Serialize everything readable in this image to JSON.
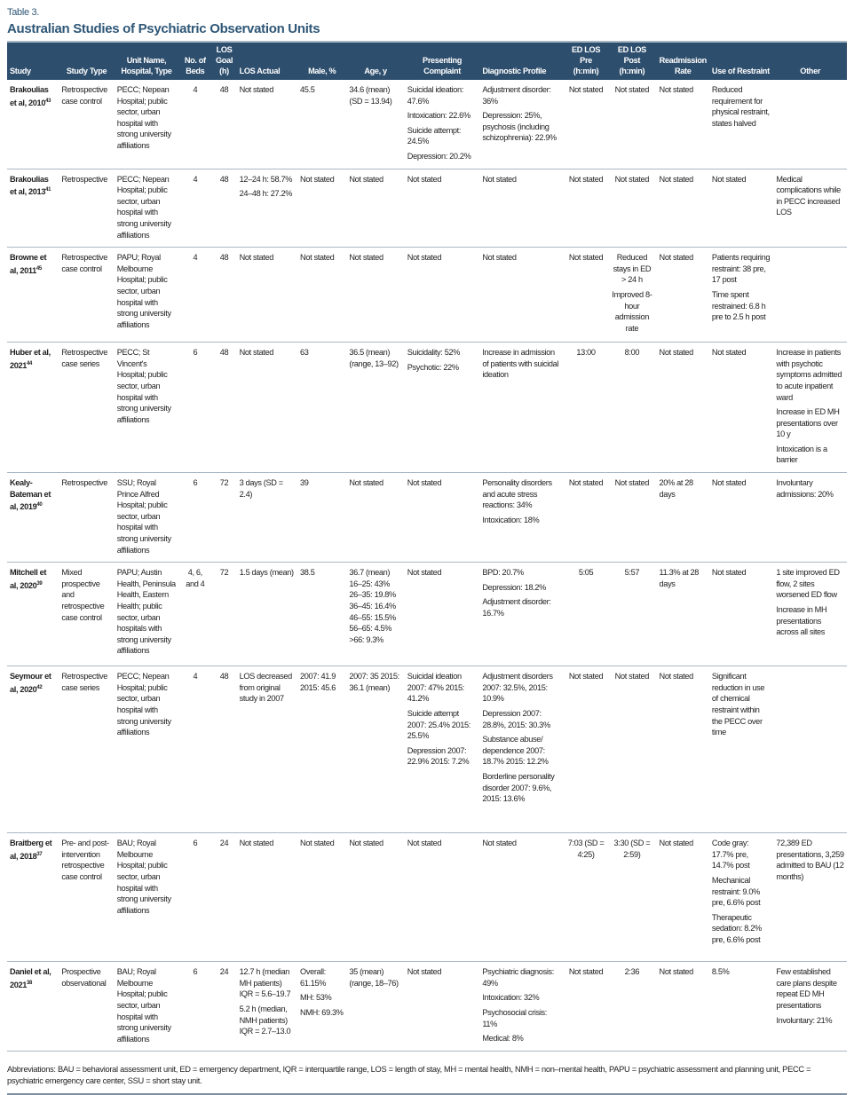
{
  "table_label": "Table 3.",
  "title": "Australian Studies of Psychiatric Observation Units",
  "colors": {
    "header_bg": "#2e4e6d",
    "title": "#2f5777",
    "rule": "#a9b7c5"
  },
  "columns": [
    "Study",
    "Study Type",
    "Unit Name, Hospital, Type",
    "No. of Beds",
    "LOS Goal (h)",
    "LOS Actual",
    "Male, %",
    "Age, y",
    "Presenting Complaint",
    "Diagnostic Profile",
    "ED LOS Pre (h:min)",
    "ED LOS Post (h:min)",
    "Readmission Rate",
    "Use of Restraint",
    "Other"
  ],
  "rows": [
    {
      "study": "Brakoulias et al, 2010",
      "ref": "43",
      "cells": [
        [
          "Retrospective case control"
        ],
        [
          "PECC; Nepean Hospital; public sector, urban hospital with strong university affiliations"
        ],
        [
          "4"
        ],
        [
          "48"
        ],
        [
          "Not stated"
        ],
        [
          "45.5"
        ],
        [
          "34.6 (mean) (SD = 13.94)"
        ],
        [
          "Suicidal ideation: 47.6%",
          "Intoxication: 22.6%",
          "Suicide attempt: 24.5%",
          "Depression: 20.2%"
        ],
        [
          "Adjustment disorder: 36%",
          "Depression: 25%, psychosis (including schizophrenia): 22.9%"
        ],
        [
          "Not stated"
        ],
        [
          "Not stated"
        ],
        [
          "Not stated"
        ],
        [
          "Reduced requirement for physical restraint, states halved"
        ],
        []
      ]
    },
    {
      "study": "Brakoulias et al, 2013",
      "ref": "41",
      "cells": [
        [
          "Retrospective"
        ],
        [
          "PECC; Nepean Hospital; public sector, urban hospital with strong university affiliations"
        ],
        [
          "4"
        ],
        [
          "48"
        ],
        [
          "12–24 h: 58.7%",
          "24–48 h: 27.2%"
        ],
        [
          "Not stated"
        ],
        [
          "Not stated"
        ],
        [
          "Not stated"
        ],
        [
          "Not stated"
        ],
        [
          "Not stated"
        ],
        [
          "Not stated"
        ],
        [
          "Not stated"
        ],
        [
          "Not stated"
        ],
        [
          "Medical complications while in PECC increased LOS"
        ]
      ]
    },
    {
      "study": "Browne et al, 2011",
      "ref": "45",
      "cells": [
        [
          "Retrospective case control"
        ],
        [
          "PAPU; Royal Melbourne Hospital; public sector, urban hospital with strong university affiliations"
        ],
        [
          "4"
        ],
        [
          "48"
        ],
        [
          "Not stated"
        ],
        [
          "Not stated"
        ],
        [
          "Not stated"
        ],
        [
          "Not stated"
        ],
        [
          "Not stated"
        ],
        [
          "Not stated"
        ],
        [
          "Reduced stays in ED > 24 h",
          "Improved 8-hour admission rate"
        ],
        [
          "Not stated"
        ],
        [
          "Patients requiring restraint: 38 pre, 17 post",
          "Time spent restrained: 6.8 h pre to 2.5 h post"
        ],
        []
      ]
    },
    {
      "study": "Huber et al, 2021",
      "ref": "44",
      "cells": [
        [
          "Retrospective case series"
        ],
        [
          "PECC; St Vincent's Hospital; public sector, urban hospital with strong university affiliations"
        ],
        [
          "6"
        ],
        [
          "48"
        ],
        [
          "Not stated"
        ],
        [
          "63"
        ],
        [
          "36.5 (mean) (range, 13–92)"
        ],
        [
          "Suicidality: 52%",
          "Psychotic: 22%"
        ],
        [
          "Increase in admission of patients with suicidal ideation"
        ],
        [
          "13:00"
        ],
        [
          "8:00"
        ],
        [
          "Not stated"
        ],
        [
          "Not stated"
        ],
        [
          "Increase in patients with psychotic symptoms admitted to acute inpatient ward",
          "Increase in ED MH presentations over 10 y",
          "Intoxication is a barrier"
        ]
      ]
    },
    {
      "study": "Kealy-Bateman et al, 2019",
      "ref": "40",
      "cells": [
        [
          "Retrospective"
        ],
        [
          "SSU; Royal Prince Alfred Hospital; public sector, urban hospital with strong university affiliations"
        ],
        [
          "6"
        ],
        [
          "72"
        ],
        [
          "3 days (SD = 2.4)"
        ],
        [
          "39"
        ],
        [
          "Not stated"
        ],
        [
          "Not stated"
        ],
        [
          "Personality disorders and acute stress reactions: 34%",
          "Intoxication: 18%"
        ],
        [
          "Not stated"
        ],
        [
          "Not stated"
        ],
        [
          "20% at 28 days"
        ],
        [
          "Not stated"
        ],
        [
          "Involuntary admissions: 20%"
        ]
      ]
    },
    {
      "study": "Mitchell et al, 2020",
      "ref": "39",
      "cells": [
        [
          "Mixed prospective and retrospective case control"
        ],
        [
          "PAPU; Austin Health, Peninsula Health, Eastern Health; public sector, urban hospitals with strong university affiliations"
        ],
        [
          "4, 6, and 4"
        ],
        [
          "72"
        ],
        [
          "1.5 days (mean)"
        ],
        [
          "38.5"
        ],
        [
          "36.7 (mean) 16–25: 43% 26–35: 19.8% 36–45: 16.4% 46–55: 15.5% 56–65: 4.5% >66: 9.3%"
        ],
        [
          "Not stated"
        ],
        [
          "BPD: 20.7%",
          "Depression: 18.2%",
          "Adjustment disorder: 16.7%"
        ],
        [
          "5:05"
        ],
        [
          "5:57"
        ],
        [
          "11.3% at 28 days"
        ],
        [
          "Not stated"
        ],
        [
          "1 site improved ED flow, 2 sites worsened ED flow",
          "Increase in MH presentations across all sites"
        ]
      ]
    },
    {
      "study": "Seymour et al, 2020",
      "ref": "42",
      "cells": [
        [
          "Retrospective case series"
        ],
        [
          "PECC; Nepean Hospital; public sector, urban hospital with strong university affiliations"
        ],
        [
          "4"
        ],
        [
          "48"
        ],
        [
          "LOS decreased from original study in 2007"
        ],
        [
          "2007: 41.9 2015: 45.6"
        ],
        [
          "2007: 35 2015: 36.1 (mean)"
        ],
        [
          "Suicidal ideation 2007: 47% 2015: 41.2%",
          "Suicide attempt 2007: 25.4% 2015: 25.5%",
          "Depression 2007: 22.9% 2015: 7.2%"
        ],
        [
          "Adjustment disorders 2007: 32.5%, 2015: 10.9%",
          "Depression 2007: 28.8%, 2015: 30.3%",
          "Substance abuse/ dependence 2007: 18.7% 2015: 12.2%",
          "Borderline personality disorder 2007: 9.6%, 2015: 13.6%"
        ],
        [
          "Not stated"
        ],
        [
          "Not stated"
        ],
        [
          "Not stated"
        ],
        [
          "Significant reduction in use of chemical restraint within the PECC over time"
        ],
        []
      ]
    },
    {
      "study": "Braitberg et al, 2018",
      "ref": "37",
      "cells": [
        [
          "Pre- and post-intervention retrospective case control"
        ],
        [
          "BAU; Royal Melbourne Hospital; public sector, urban hospital with strong university affiliations"
        ],
        [
          "6"
        ],
        [
          "24"
        ],
        [
          "Not stated"
        ],
        [
          "Not stated"
        ],
        [
          "Not stated"
        ],
        [
          "Not stated"
        ],
        [
          "Not stated"
        ],
        [
          "7:03 (SD = 4:25)"
        ],
        [
          "3:30 (SD = 2:59)"
        ],
        [
          "Not stated"
        ],
        [
          "Code gray: 17.7% pre, 14.7% post",
          "Mechanical restraint: 9.0% pre, 6.6% post",
          "Therapeutic sedation: 8.2% pre, 6.6% post"
        ],
        [
          "72,389 ED presentations, 3,259 admitted to BAU (12 months)"
        ]
      ]
    },
    {
      "study": "Daniel et al, 2021",
      "ref": "38",
      "cells": [
        [
          "Prospective observational"
        ],
        [
          "BAU; Royal Melbourne Hospital; public sector, urban hospital with strong university affiliations"
        ],
        [
          "6"
        ],
        [
          "24"
        ],
        [
          "12.7 h (median MH patients) IQR = 5.6–19.7",
          "5.2 h (median, NMH patients) IQR = 2.7–13.0"
        ],
        [
          "Overall: 61.15%",
          "MH: 53%",
          "NMH: 69.3%"
        ],
        [
          "35 (mean) (range, 18–76)"
        ],
        [
          "Not stated"
        ],
        [
          "Psychiatric diagnosis: 49%",
          "Intoxication: 32%",
          "Psychosocial crisis: 11%",
          "Medical: 8%"
        ],
        [
          "Not stated"
        ],
        [
          "2:36"
        ],
        [
          "Not stated"
        ],
        [
          "8.5%"
        ],
        [
          "Few established care plans despite repeat ED MH presentations",
          "Involuntary: 21%"
        ]
      ]
    }
  ],
  "footnote": "Abbreviations: BAU = behavioral assessment unit, ED = emergency department, IQR = interquartile range, LOS = length of stay, MH = mental health, NMH = non–mental health, PAPU = psychiatric assessment and planning unit, PECC = psychiatric emergency care center, SSU = short stay unit."
}
